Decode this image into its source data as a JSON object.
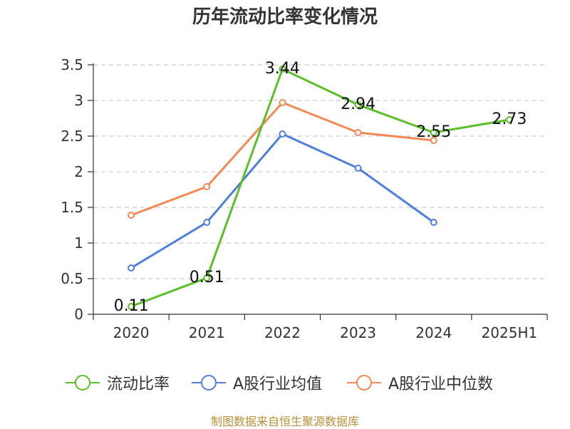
{
  "chart_data": {
    "type": "line",
    "title": "历年流动比率变化情况",
    "categories": [
      "2020",
      "2021",
      "2022",
      "2023",
      "2024",
      "2025H1"
    ],
    "ylim": [
      0,
      3.5
    ],
    "yticks": [
      "0",
      "0.5",
      "1",
      "1.5",
      "2",
      "2.5",
      "3",
      "3.5"
    ],
    "grid": true,
    "legend_position": "bottom",
    "series": [
      {
        "name": "流动比率",
        "color": "#5cbf2a",
        "values": [
          0.11,
          0.51,
          3.44,
          2.94,
          2.55,
          2.73
        ],
        "data_labels": [
          "0.11",
          "0.51",
          "3.44",
          "2.94",
          "2.55",
          "2.73"
        ]
      },
      {
        "name": "A股行业均值",
        "color": "#4f7fdb",
        "values": [
          0.65,
          1.29,
          2.53,
          2.05,
          1.29,
          null
        ]
      },
      {
        "name": "A股行业中位数",
        "color": "#f28a55",
        "values": [
          1.39,
          1.79,
          2.97,
          2.55,
          2.44,
          null
        ]
      }
    ]
  },
  "source_note": "制图数据来自恒生聚源数据库"
}
